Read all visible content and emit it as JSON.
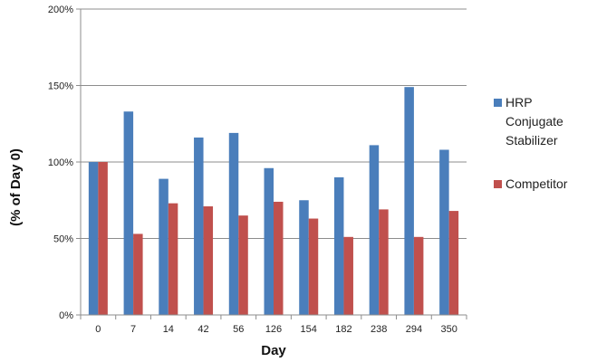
{
  "chart_data": {
    "type": "bar",
    "xlabel": "Day",
    "ylabel": "(% of Day 0)",
    "categories": [
      "0",
      "7",
      "14",
      "42",
      "56",
      "126",
      "154",
      "182",
      "238",
      "294",
      "350"
    ],
    "ylim": [
      0,
      200
    ],
    "yticks": [
      0,
      50,
      100,
      150,
      200
    ],
    "ytick_labels": [
      "0%",
      "50%",
      "100%",
      "150%",
      "200%"
    ],
    "grid": true,
    "legend_position": "right",
    "series": [
      {
        "name_lines": [
          "HRP",
          "Conjugate",
          "Stabilizer"
        ],
        "color": "#4a7ebb",
        "values": [
          100,
          133,
          89,
          116,
          119,
          96,
          75,
          90,
          111,
          149,
          108
        ]
      },
      {
        "name_lines": [
          "Competitor"
        ],
        "color": "#c0504d",
        "values": [
          100,
          53,
          73,
          71,
          65,
          74,
          63,
          51,
          69,
          51,
          68
        ]
      }
    ]
  }
}
